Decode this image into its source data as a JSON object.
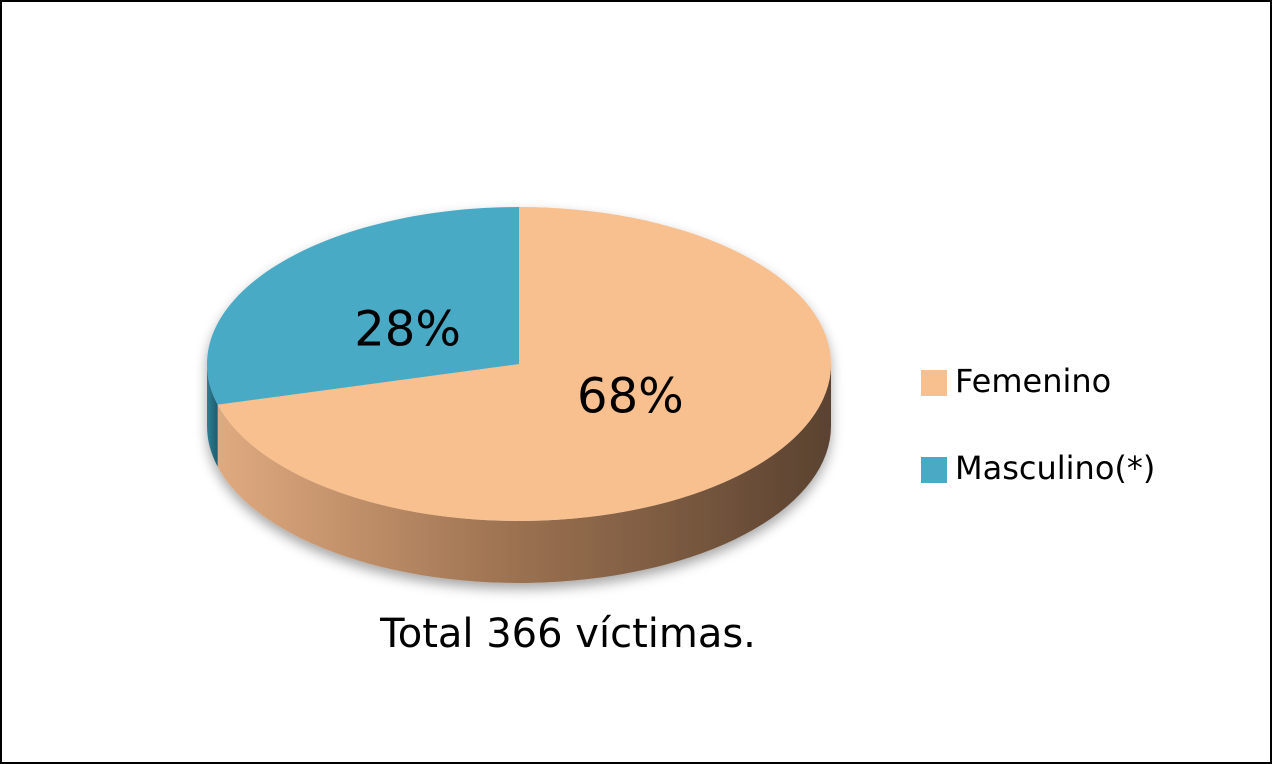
{
  "chart_data": {
    "type": "pie3d",
    "categories": [
      "Femenino",
      "Masculino(*)"
    ],
    "values": [
      68,
      28
    ],
    "value_labels": [
      "68%",
      "28%"
    ],
    "colors": [
      "#f8bf8f",
      "#4aaac5"
    ],
    "annotation": "Total 366 víctimas.",
    "legend": "right"
  }
}
